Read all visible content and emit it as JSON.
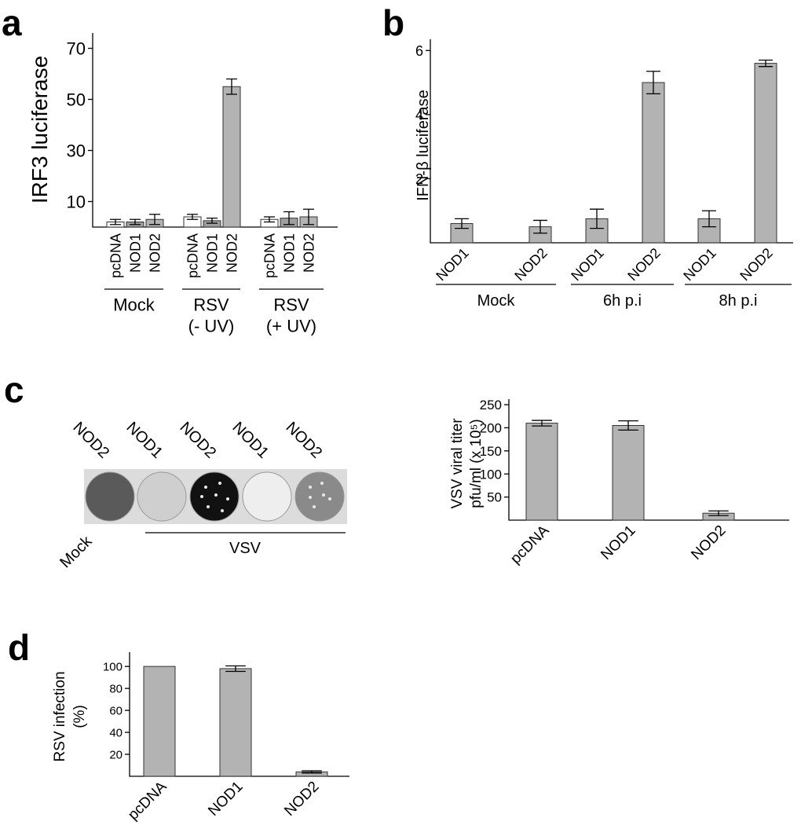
{
  "chart_data": [
    {
      "type": "bar",
      "panel": "a",
      "y_label": "IRF3 luciferase",
      "categories": [
        "pcDNA",
        "NOD1",
        "NOD2",
        "pcDNA",
        "NOD1",
        "NOD2",
        "pcDNA",
        "NOD1",
        "NOD2"
      ],
      "values": [
        2,
        2,
        3,
        4,
        2.5,
        55,
        3,
        3.5,
        4
      ],
      "errors": [
        1,
        1,
        2,
        1,
        1,
        3,
        1,
        2.5,
        3
      ],
      "colors": [
        "#ffffff",
        "#9e9e9e",
        "#b3b3b3",
        "#ffffff",
        "#9e9e9e",
        "#b3b3b3",
        "#ffffff",
        "#9e9e9e",
        "#b3b3b3"
      ],
      "groups": [
        {
          "label": [
            "Mock"
          ]
        },
        {
          "label": [
            "RSV",
            "(- UV)"
          ]
        },
        {
          "label": [
            "RSV",
            "(+ UV)"
          ]
        }
      ],
      "ylim": [
        0,
        76
      ],
      "yticks": [
        10,
        30,
        50,
        70
      ]
    },
    {
      "type": "bar",
      "panel": "b",
      "y_label": "IFN-β luciferase",
      "categories": [
        "NOD1",
        "NOD2",
        "NOD1",
        "NOD2",
        "NOD1",
        "NOD2"
      ],
      "values": [
        0.6,
        0.5,
        0.75,
        5.0,
        0.75,
        5.6
      ],
      "errors": [
        0.15,
        0.2,
        0.3,
        0.35,
        0.25,
        0.1
      ],
      "color": "#b3b3b3",
      "groups": [
        {
          "label": [
            "Mock"
          ]
        },
        {
          "label": [
            "6h p.i"
          ]
        },
        {
          "label": [
            "8h p.i"
          ]
        }
      ],
      "ylim": [
        0,
        6.35
      ],
      "yticks": [
        2,
        4,
        6
      ]
    },
    {
      "type": "bar",
      "panel": "c",
      "y_label": [
        "VSV viral titer",
        "pfu/ml (x 10⁵)"
      ],
      "categories": [
        "pcDNA",
        "NOD1",
        "NOD2"
      ],
      "values": [
        210,
        205,
        15
      ],
      "errors": [
        6,
        10,
        5
      ],
      "color": "#b3b3b3",
      "ylim": [
        0,
        262
      ],
      "yticks": [
        50,
        100,
        150,
        200,
        250
      ]
    },
    {
      "type": "bar",
      "panel": "d",
      "y_label": [
        "RSV infection",
        "(%)"
      ],
      "categories": [
        "pcDNA",
        "NOD1",
        "NOD2"
      ],
      "values": [
        100,
        98,
        4
      ],
      "errors": [
        null,
        2.5,
        1
      ],
      "color": "#b3b3b3",
      "ylim": [
        0,
        113
      ],
      "yticks": [
        20,
        40,
        60,
        80,
        100
      ]
    }
  ],
  "plaque_assay": {
    "well_labels": [
      "NOD2",
      "NOD1",
      "NOD2",
      "NOD1",
      "NOD2"
    ],
    "mock_label": "Mock",
    "group_label": "VSV"
  }
}
